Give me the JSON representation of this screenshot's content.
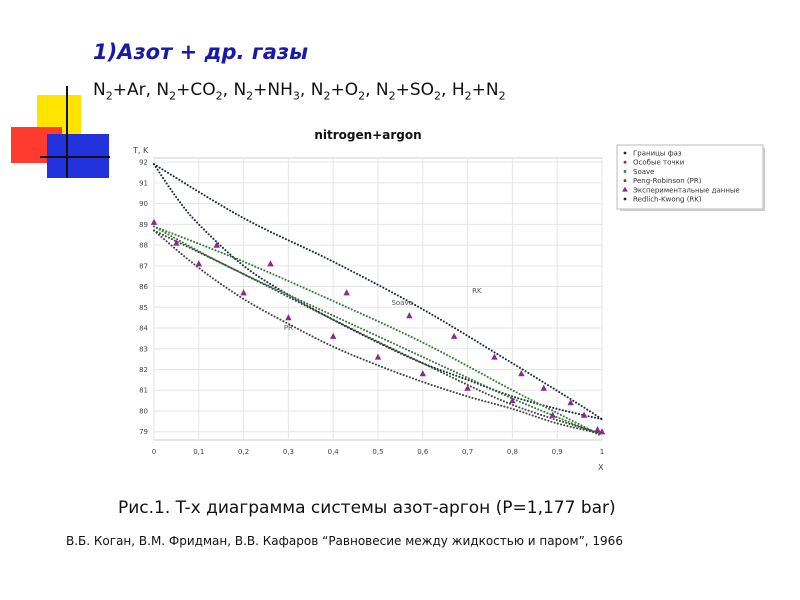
{
  "slide": {
    "title": "1)Азот + др. газы",
    "systems": [
      {
        "a": "N",
        "a_sub": "2",
        "b": "Ar",
        "b_sub": ""
      },
      {
        "a": "N",
        "a_sub": "2",
        "b": "CO",
        "b_sub": "2"
      },
      {
        "a": "N",
        "a_sub": "2",
        "b": "NH",
        "b_sub": "3"
      },
      {
        "a": "N",
        "a_sub": "2",
        "b": "O",
        "b_sub": "2"
      },
      {
        "a": "N",
        "a_sub": "2",
        "b": "SO",
        "b_sub": "2"
      },
      {
        "a": "H",
        "a_sub": "2",
        "b": "N",
        "b_sub": "2"
      }
    ],
    "caption": "Рис.1. T-x диаграмма системы азот-аргон (P=1,177 bar)",
    "source": "В.Б. Коган, В.М. Фридман, В.В. Кафаров “Равновесие между жидкостью и паром”, 1966",
    "colors": {
      "title": "#1a1aa8",
      "yellow": "#ffe400",
      "red": "#ff3b30",
      "blue": "#2233dd"
    }
  },
  "chart_data": {
    "type": "line",
    "title": "nitrogen+argon",
    "ylabel": "T, K",
    "xlabel": "X",
    "xlim": [
      0,
      1
    ],
    "ylim": [
      78.6,
      92.2
    ],
    "x_ticks": [
      "0",
      "0,1",
      "0,2",
      "0,3",
      "0,4",
      "0,5",
      "0,6",
      "0,7",
      "0,8",
      "0,9",
      "1"
    ],
    "y_ticks": [
      "79",
      "80",
      "81",
      "82",
      "83",
      "84",
      "85",
      "86",
      "87",
      "88",
      "89",
      "90",
      "91",
      "92"
    ],
    "grid": true,
    "legend_position": "top-right-outside",
    "legend": [
      {
        "label": "Границы фаз",
        "marker": "dot",
        "color": "#1a2a3a"
      },
      {
        "label": "Особые точки",
        "marker": "dot",
        "color": "#d11"
      },
      {
        "label": "Soave",
        "marker": "dot",
        "color": "#2e7d32"
      },
      {
        "label": "Peng-Robinson (PR)",
        "marker": "dot",
        "color": "#444"
      },
      {
        "label": "Экспериментальные данные",
        "marker": "triangle",
        "color": "#8b2a8b"
      },
      {
        "label": "Redlich-Kwong (RK)",
        "marker": "dot",
        "color": "#1a2a3a"
      }
    ],
    "annotations": [
      {
        "text": "RK",
        "x": 0.71,
        "y": 85.7
      },
      {
        "text": "Soave",
        "x": 0.53,
        "y": 85.1
      },
      {
        "text": "PR",
        "x": 0.29,
        "y": 83.9
      }
    ],
    "series": [
      {
        "name": "Redlich-Kwong (RK)",
        "style": "dots",
        "color": "#1a2a3a",
        "x": [
          0,
          0.2,
          0.4,
          0.6,
          0.8,
          0.95,
          1
        ],
        "y": [
          91.9,
          89.3,
          87.2,
          84.9,
          82.3,
          80.3,
          79.6
        ]
      },
      {
        "style": "dots",
        "color": "#1a2a3a",
        "x": [
          0,
          0.05,
          0.1,
          0.2,
          0.3,
          0.4,
          0.5,
          0.6,
          0.7,
          0.8,
          0.9,
          1
        ],
        "y": [
          91.9,
          90.3,
          89.0,
          87.0,
          85.6,
          84.4,
          83.3,
          82.3,
          81.5,
          80.7,
          80.1,
          79.6
        ]
      },
      {
        "name": "Soave",
        "style": "dots",
        "color": "#2e7d32",
        "x": [
          0,
          0.2,
          0.4,
          0.6,
          0.8,
          0.9,
          1
        ],
        "y": [
          88.9,
          87.2,
          85.3,
          83.3,
          81.0,
          79.9,
          78.8
        ]
      },
      {
        "style": "dots",
        "color": "#2e7d32",
        "x": [
          0,
          0.1,
          0.2,
          0.3,
          0.4,
          0.5,
          0.6,
          0.7,
          0.8,
          0.9,
          1
        ],
        "y": [
          88.9,
          87.7,
          86.6,
          85.6,
          84.6,
          83.6,
          82.6,
          81.6,
          80.6,
          79.7,
          78.8
        ]
      },
      {
        "name": "Peng-Robinson (PR)",
        "style": "dots",
        "color": "#444",
        "x": [
          0,
          0.2,
          0.4,
          0.6,
          0.8,
          1
        ],
        "y": [
          88.7,
          86.6,
          84.4,
          82.3,
          80.3,
          78.9
        ]
      },
      {
        "style": "dots",
        "color": "#444",
        "x": [
          0,
          0.1,
          0.2,
          0.3,
          0.4,
          0.5,
          0.6,
          0.7,
          0.8,
          0.9,
          1
        ],
        "y": [
          88.7,
          86.9,
          85.4,
          84.2,
          83.1,
          82.2,
          81.4,
          80.7,
          80.1,
          79.4,
          78.9
        ]
      },
      {
        "name": "Экспериментальные данные",
        "style": "triangles",
        "color": "#8b2a8b",
        "x": [
          0,
          0.05,
          0.1,
          0.14,
          0.2,
          0.26,
          0.3,
          0.4,
          0.43,
          0.5,
          0.57,
          0.6,
          0.67,
          0.7,
          0.76,
          0.8,
          0.82,
          0.87,
          0.89,
          0.93,
          0.96,
          0.99,
          1
        ],
        "y": [
          89.1,
          88.1,
          87.1,
          88.0,
          85.7,
          87.1,
          84.5,
          83.6,
          85.7,
          82.6,
          84.6,
          81.8,
          83.6,
          81.1,
          82.6,
          80.5,
          81.8,
          81.1,
          79.8,
          80.4,
          79.8,
          79.1,
          79.0
        ]
      }
    ]
  }
}
